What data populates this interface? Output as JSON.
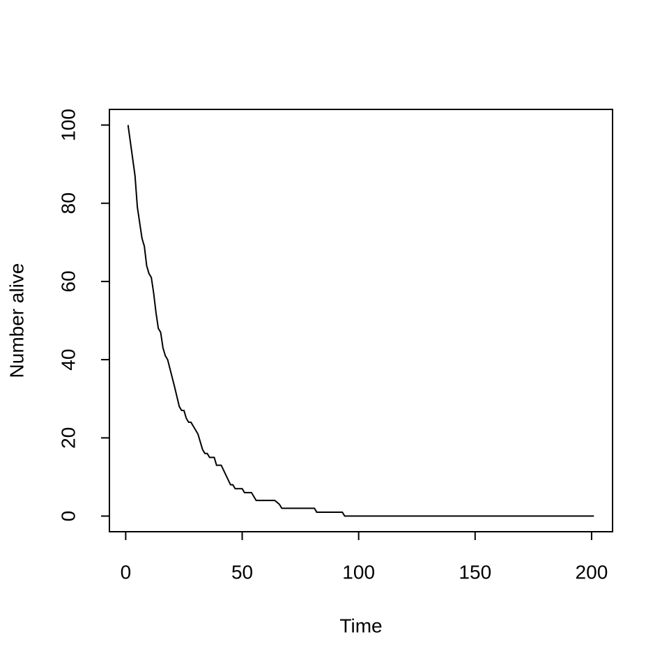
{
  "chart_data": {
    "type": "line",
    "x_label": "Time",
    "y_label": "Number alive",
    "x": [
      1,
      4,
      5,
      7,
      8,
      9,
      10,
      11,
      12,
      13,
      14,
      15,
      16,
      17,
      18,
      21,
      23,
      24,
      25,
      26,
      27,
      28,
      31,
      33,
      34,
      35,
      36,
      38,
      39,
      41,
      45,
      46,
      47,
      50,
      51,
      54,
      56,
      64,
      66,
      67,
      81,
      82,
      93,
      94,
      201
    ],
    "values": [
      100,
      87,
      79,
      71,
      69,
      64,
      62,
      61,
      57,
      52,
      48,
      47,
      43,
      41,
      40,
      33,
      28,
      27,
      27,
      25,
      24,
      24,
      21,
      17,
      16,
      16,
      15,
      15,
      13,
      13,
      8,
      8,
      7,
      7,
      6,
      6,
      4,
      4,
      3,
      2,
      2,
      1,
      1,
      0,
      0
    ],
    "color": "#000000",
    "xlim": [
      -7,
      209
    ],
    "xticks": [
      0,
      50,
      100,
      150,
      200
    ],
    "ylim": [
      -4,
      104
    ],
    "yticks": [
      0,
      20,
      40,
      60,
      80,
      100
    ]
  }
}
